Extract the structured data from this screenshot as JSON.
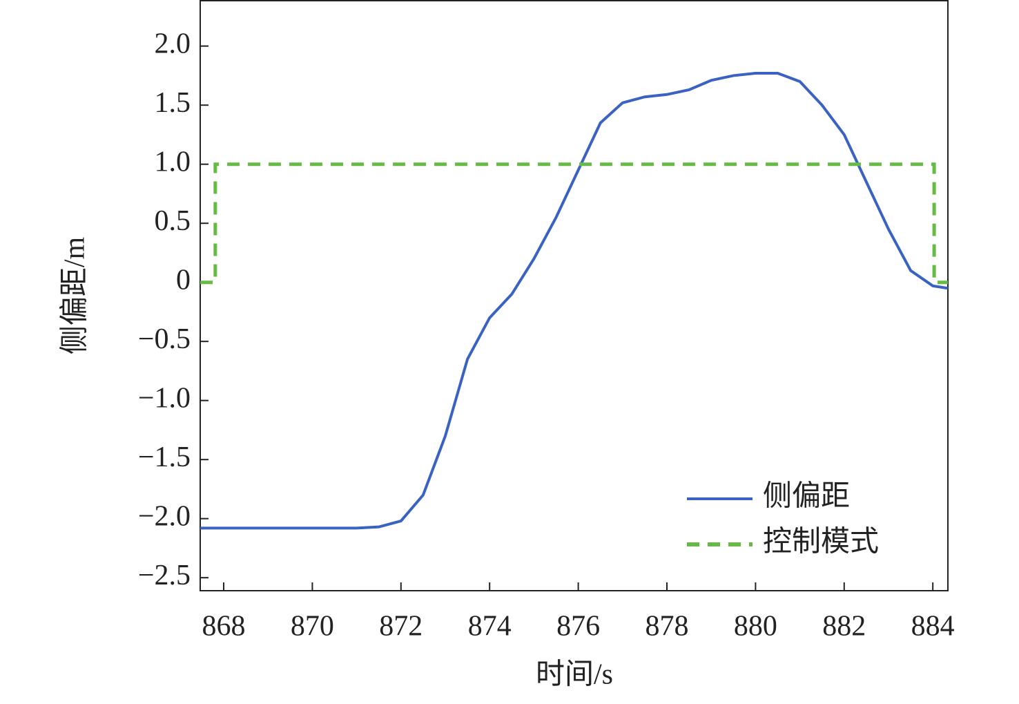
{
  "chart_data": {
    "type": "line",
    "x_label": "时间/s",
    "y_label": "侧偏距/m",
    "xlim": [
      867.47,
      884.34
    ],
    "ylim": [
      -2.61,
      2.39
    ],
    "xticks": [
      868,
      870,
      872,
      874,
      876,
      878,
      880,
      882,
      884
    ],
    "yticks": [
      {
        "value": 2.0,
        "label": "2.0"
      },
      {
        "value": 1.5,
        "label": "1.5"
      },
      {
        "value": 1.0,
        "label": "1.0"
      },
      {
        "value": 0.5,
        "label": "0.5"
      },
      0,
      {
        "value": -0.5,
        "label": "−0.5"
      },
      {
        "value": -1.0,
        "label": "−1.0"
      },
      {
        "value": -1.5,
        "label": "−1.5"
      },
      {
        "value": -2.0,
        "label": "−2.0"
      },
      {
        "value": -2.5,
        "label": "−2.5"
      }
    ],
    "legend": "lower right",
    "series": [
      {
        "name": "侧偏距",
        "color": "#3a62c2",
        "dash": false,
        "x": [
          867.47,
          868,
          869,
          870,
          871,
          871.5,
          872,
          872.5,
          873,
          873.5,
          874,
          874.5,
          875,
          875.5,
          876,
          876.5,
          877,
          877.5,
          878,
          878.5,
          879,
          879.5,
          880,
          880.5,
          881,
          881.5,
          882,
          882.5,
          883,
          883.5,
          884,
          884.34
        ],
        "values": [
          -2.08,
          -2.08,
          -2.08,
          -2.08,
          -2.08,
          -2.07,
          -2.02,
          -1.8,
          -1.3,
          -0.65,
          -0.3,
          -0.1,
          0.2,
          0.55,
          0.95,
          1.35,
          1.52,
          1.57,
          1.59,
          1.63,
          1.71,
          1.75,
          1.77,
          1.77,
          1.7,
          1.5,
          1.25,
          0.85,
          0.45,
          0.1,
          -0.03,
          -0.05
        ]
      },
      {
        "name": "控制模式",
        "color": "#66bb44",
        "dash": true,
        "x": [
          867.47,
          867.81,
          867.81,
          884.03,
          884.03,
          884.34
        ],
        "values": [
          0,
          0,
          1,
          1,
          0,
          0
        ]
      }
    ]
  }
}
